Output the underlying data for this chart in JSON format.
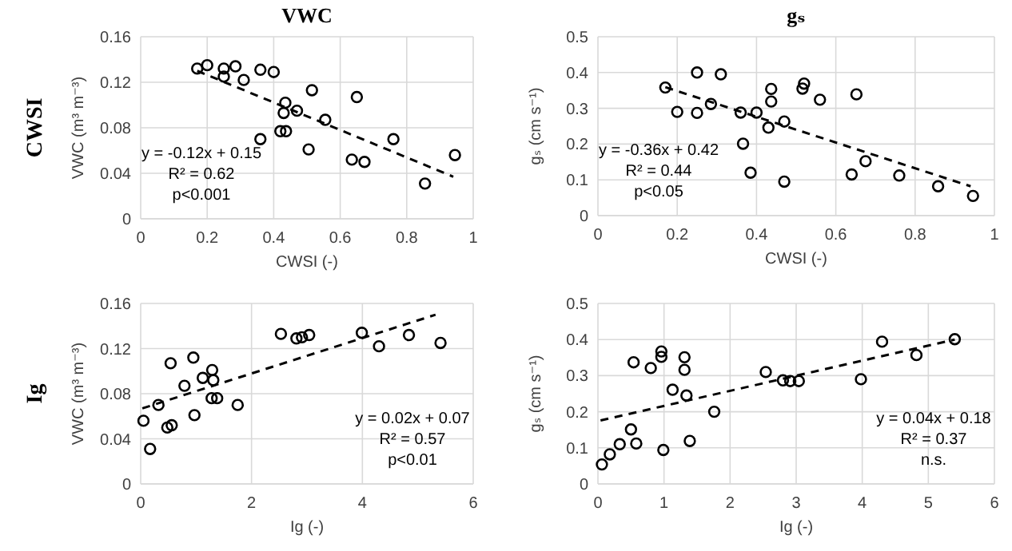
{
  "chart_data": [
    {
      "type": "scatter",
      "title": "VWC",
      "subtitle": "CWSI",
      "xlabel": "CWSI (-)",
      "ylabel": "VWC (m³ m⁻³)",
      "xlim": [
        0,
        1
      ],
      "xticks": [
        0,
        0.2,
        0.4,
        0.6,
        0.8,
        1
      ],
      "ylim": [
        0,
        0.16
      ],
      "yticks": [
        0,
        0.04,
        0.08,
        0.12,
        0.16
      ],
      "grid": true,
      "marker": "circle",
      "annotations": [
        "y = -0.12x + 0.15",
        "R² = 0.62",
        "p<0.001"
      ],
      "series": [
        {
          "color": "#000000",
          "x": [
            0.17,
            0.2,
            0.25,
            0.25,
            0.285,
            0.31,
            0.36,
            0.4,
            0.515,
            0.65,
            0.435,
            0.47,
            0.43,
            0.555,
            0.42,
            0.437,
            0.36,
            0.76,
            0.505,
            0.635,
            0.673,
            0.945,
            0.855
          ],
          "values": [
            0.132,
            0.135,
            0.132,
            0.125,
            0.134,
            0.122,
            0.131,
            0.129,
            0.113,
            0.107,
            0.102,
            0.095,
            0.093,
            0.087,
            0.077,
            0.077,
            0.07,
            0.07,
            0.061,
            0.052,
            0.05,
            0.056,
            0.031
          ]
        },
        {
          "type": "line",
          "color": "#000000",
          "line_style": "dashed",
          "marker": "none",
          "x": [
            0.17,
            0.94
          ],
          "values": [
            0.13,
            0.037
          ]
        }
      ]
    },
    {
      "type": "scatter",
      "title": "gₛ",
      "xlabel": "CWSI (-)",
      "ylabel": "gₛ (cm s⁻¹)",
      "xlim": [
        0,
        1
      ],
      "xticks": [
        0,
        0.2,
        0.4,
        0.6,
        0.8,
        1
      ],
      "ylim": [
        0,
        0.5
      ],
      "yticks": [
        0,
        0.1,
        0.2,
        0.3,
        0.4,
        0.5
      ],
      "grid": true,
      "marker": "circle",
      "annotations": [
        "y = -0.36x + 0.42",
        "R² = 0.44",
        "p<0.05"
      ],
      "series": [
        {
          "color": "#000000",
          "x": [
            0.17,
            0.25,
            0.31,
            0.2,
            0.25,
            0.285,
            0.36,
            0.4,
            0.437,
            0.437,
            0.43,
            0.47,
            0.52,
            0.516,
            0.56,
            0.652,
            0.366,
            0.385,
            0.47,
            0.64,
            0.675,
            0.76,
            0.858,
            0.946
          ],
          "values": [
            0.358,
            0.4,
            0.395,
            0.29,
            0.287,
            0.312,
            0.288,
            0.288,
            0.354,
            0.319,
            0.246,
            0.263,
            0.369,
            0.355,
            0.324,
            0.339,
            0.201,
            0.12,
            0.095,
            0.115,
            0.152,
            0.112,
            0.082,
            0.055
          ]
        },
        {
          "type": "line",
          "color": "#000000",
          "line_style": "dashed",
          "marker": "none",
          "x": [
            0.17,
            0.94
          ],
          "values": [
            0.359,
            0.082
          ]
        }
      ]
    },
    {
      "type": "scatter",
      "subtitle": "Ig",
      "xlabel": "Ig (-)",
      "ylabel": "VWC (m³ m⁻³)",
      "xlim": [
        0,
        6
      ],
      "xticks": [
        0,
        2,
        4,
        6
      ],
      "ylim": [
        0,
        0.16
      ],
      "yticks": [
        0,
        0.04,
        0.08,
        0.12,
        0.16
      ],
      "grid": true,
      "marker": "circle",
      "annotations": [
        "y = 0.02x + 0.07",
        "R² = 0.57",
        "p<0.01"
      ],
      "series": [
        {
          "color": "#000000",
          "x": [
            0.05,
            0.17,
            0.32,
            0.54,
            0.48,
            0.56,
            0.79,
            0.95,
            0.97,
            1.12,
            1.29,
            1.31,
            1.28,
            1.38,
            1.75,
            2.53,
            2.81,
            2.91,
            3.04,
            3.99,
            4.3,
            4.84,
            5.41
          ],
          "values": [
            0.056,
            0.031,
            0.07,
            0.107,
            0.05,
            0.052,
            0.087,
            0.112,
            0.061,
            0.094,
            0.101,
            0.092,
            0.076,
            0.076,
            0.07,
            0.133,
            0.129,
            0.13,
            0.132,
            0.134,
            0.122,
            0.132,
            0.125
          ]
        },
        {
          "type": "line",
          "color": "#000000",
          "line_style": "dashed",
          "marker": "none",
          "x": [
            0.03,
            5.32
          ],
          "values": [
            0.067,
            0.15
          ]
        }
      ]
    },
    {
      "type": "scatter",
      "xlabel": "Ig (-)",
      "ylabel": "gₛ (cm s⁻¹)",
      "xlim": [
        0,
        6
      ],
      "xticks": [
        0,
        1,
        2,
        3,
        4,
        5,
        6
      ],
      "ylim": [
        0,
        0.5
      ],
      "yticks": [
        0,
        0.1,
        0.2,
        0.3,
        0.4,
        0.5
      ],
      "grid": true,
      "marker": "circle",
      "annotations": [
        "y = 0.04x + 0.18",
        "R² = 0.37",
        "n.s."
      ],
      "series": [
        {
          "color": "#000000",
          "x": [
            0.06,
            0.18,
            0.33,
            0.5,
            0.58,
            0.54,
            0.8,
            0.96,
            0.96,
            0.99,
            1.13,
            1.31,
            1.31,
            1.34,
            1.39,
            1.76,
            2.54,
            2.8,
            2.91,
            3.04,
            3.98,
            4.3,
            4.82,
            5.4
          ],
          "values": [
            0.054,
            0.082,
            0.11,
            0.151,
            0.112,
            0.337,
            0.321,
            0.367,
            0.352,
            0.094,
            0.261,
            0.351,
            0.316,
            0.245,
            0.119,
            0.2,
            0.31,
            0.287,
            0.285,
            0.285,
            0.29,
            0.394,
            0.357,
            0.401
          ]
        },
        {
          "type": "line",
          "color": "#000000",
          "line_style": "dashed",
          "marker": "none",
          "x": [
            0.04,
            5.4
          ],
          "values": [
            0.176,
            0.4
          ]
        }
      ]
    }
  ]
}
